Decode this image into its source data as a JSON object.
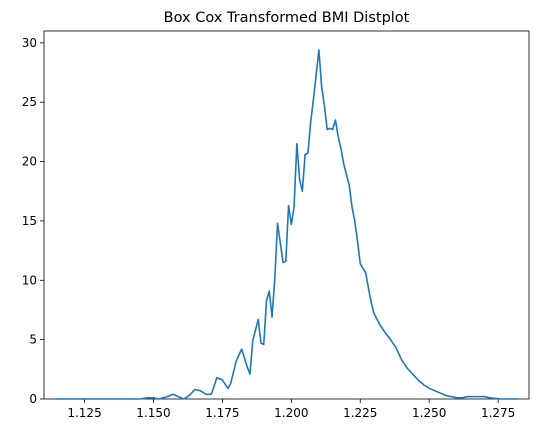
{
  "chart_data": {
    "type": "line",
    "title": "Box Cox Transformed BMI Distplot",
    "xlabel": "",
    "ylabel": "",
    "xlim": [
      1.1103,
      1.2862
    ],
    "ylim": [
      0,
      31
    ],
    "x_ticks": [
      1.125,
      1.15,
      1.175,
      1.2,
      1.225,
      1.25,
      1.275
    ],
    "x_tick_labels": [
      "1.125",
      "1.150",
      "1.175",
      "1.200",
      "1.225",
      "1.250",
      "1.275"
    ],
    "y_ticks": [
      0,
      5,
      10,
      15,
      20,
      25,
      30
    ],
    "y_tick_labels": [
      "0",
      "5",
      "10",
      "15",
      "20",
      "25",
      "30"
    ],
    "grid": false,
    "series": [
      {
        "color": "#1f77b4",
        "x": [
          1.1143,
          1.12,
          1.13,
          1.135,
          1.14,
          1.145,
          1.148,
          1.15,
          1.152,
          1.155,
          1.157,
          1.159,
          1.161,
          1.163,
          1.165,
          1.167,
          1.169,
          1.171,
          1.173,
          1.175,
          1.177,
          1.178,
          1.18,
          1.182,
          1.184,
          1.185,
          1.186,
          1.188,
          1.189,
          1.19,
          1.191,
          1.192,
          1.193,
          1.194,
          1.195,
          1.197,
          1.198,
          1.199,
          1.2,
          1.201,
          1.202,
          1.203,
          1.204,
          1.205,
          1.206,
          1.207,
          1.208,
          1.209,
          1.21,
          1.211,
          1.212,
          1.213,
          1.214,
          1.215,
          1.216,
          1.217,
          1.218,
          1.219,
          1.22,
          1.221,
          1.222,
          1.223,
          1.224,
          1.225,
          1.226,
          1.227,
          1.228,
          1.229,
          1.23,
          1.232,
          1.234,
          1.236,
          1.238,
          1.24,
          1.242,
          1.244,
          1.246,
          1.248,
          1.25,
          1.252,
          1.254,
          1.256,
          1.258,
          1.26,
          1.262,
          1.264,
          1.266,
          1.268,
          1.27,
          1.272,
          1.274,
          1.276,
          1.278,
          1.28,
          1.282
        ],
        "y": [
          0.0,
          0.0,
          0.0,
          0.0,
          0.0,
          0.0,
          0.1,
          0.1,
          0.0,
          0.2,
          0.4,
          0.2,
          0.0,
          0.3,
          0.8,
          0.7,
          0.4,
          0.4,
          1.8,
          1.6,
          0.9,
          1.3,
          3.2,
          4.2,
          2.7,
          2.1,
          4.9,
          6.7,
          4.7,
          4.6,
          8.3,
          9.1,
          6.9,
          10.1,
          14.8,
          11.5,
          11.6,
          16.3,
          14.7,
          16.2,
          21.5,
          18.5,
          17.5,
          20.6,
          20.7,
          23.3,
          25.2,
          27.3,
          29.4,
          26.3,
          24.7,
          22.7,
          22.8,
          22.7,
          23.5,
          22.1,
          21.1,
          19.8,
          18.9,
          18.0,
          16.2,
          15.0,
          13.3,
          11.4,
          11.0,
          10.6,
          9.3,
          8.1,
          7.2,
          6.3,
          5.6,
          5.0,
          4.3,
          3.3,
          2.6,
          2.1,
          1.6,
          1.2,
          0.9,
          0.7,
          0.5,
          0.3,
          0.2,
          0.1,
          0.1,
          0.2,
          0.2,
          0.2,
          0.2,
          0.1,
          0.05,
          0.0,
          0.0,
          0.0,
          0.0
        ]
      }
    ]
  }
}
